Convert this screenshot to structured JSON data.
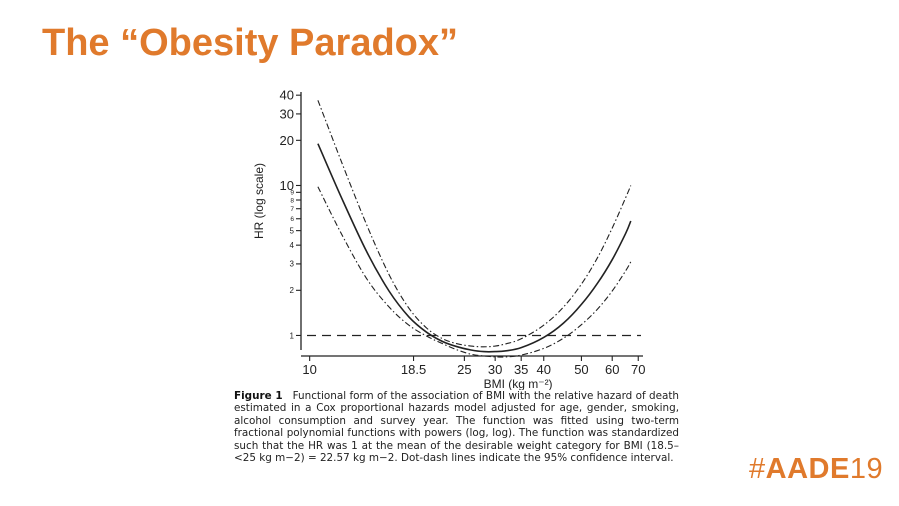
{
  "slide": {
    "title": "The “Obesity Paradox”",
    "hashtag_prefix": "#",
    "hashtag_bold": "AADE",
    "hashtag_light": "19",
    "accent_color": "#e07a2c"
  },
  "figure": {
    "caption_label": "Figure 1",
    "caption_text": "Functional form of the association of BMI with the relative hazard of death estimated in a Cox proportional hazards model adjusted for age, gender, smoking, alcohol consumption and survey year. The function was fitted using two-term fractional polynomial functions with powers (log, log). The function was standardized such that the HR was 1 at the mean of the desirable weight category for BMI (18.5–<25 kg m−2) = 22.57 kg m−2. Dot-dash lines indicate the 95% confidence interval."
  },
  "chart_data": {
    "type": "line",
    "xlabel": "BMI (kg m⁻²)",
    "ylabel": "HR (log scale)",
    "x_scale": "log",
    "y_scale": "log",
    "xlim": [
      9.5,
      72
    ],
    "ylim": [
      0.8,
      42
    ],
    "x_ticks": [
      10,
      18.5,
      25,
      30,
      35,
      40,
      50,
      60,
      70
    ],
    "x_tick_labels": [
      "10",
      "18.5",
      "25",
      "30",
      "35",
      "40",
      "50",
      "60",
      "70"
    ],
    "y_ticks": [
      1,
      2,
      3,
      4,
      5,
      6,
      7,
      8,
      9,
      10,
      20,
      30,
      40
    ],
    "y_tick_labels": [
      "1",
      "2",
      "3",
      "4",
      "5",
      "6",
      "7",
      "8",
      "9",
      "10",
      "20",
      "30",
      "40"
    ],
    "reference_line": {
      "y": 1,
      "style": "dashed"
    },
    "grid": false,
    "series": [
      {
        "role": "estimate",
        "style": "solid",
        "x": [
          10.5,
          12,
          14,
          16,
          18,
          20,
          22,
          24,
          26,
          28,
          30,
          32,
          35,
          40,
          45,
          50,
          55,
          60,
          65,
          67
        ],
        "y": [
          19.0,
          8.6,
          3.64,
          1.98,
          1.33,
          1.05,
          0.91,
          0.84,
          0.8,
          0.78,
          0.78,
          0.79,
          0.83,
          0.97,
          1.21,
          1.61,
          2.23,
          3.2,
          4.8,
          5.8
        ]
      },
      {
        "role": "upper_95_ci",
        "style": "dashdot",
        "x": [
          10.5,
          12,
          14,
          16,
          18,
          20,
          22,
          24,
          26,
          28,
          30,
          32,
          35,
          40,
          45,
          50,
          55,
          60,
          65,
          67
        ],
        "y": [
          37.0,
          15.0,
          5.5,
          2.55,
          1.52,
          1.12,
          0.95,
          0.88,
          0.85,
          0.84,
          0.85,
          0.88,
          0.95,
          1.17,
          1.55,
          2.2,
          3.3,
          5.2,
          8.3,
          10.0
        ]
      },
      {
        "role": "lower_95_ci",
        "style": "dashdot",
        "x": [
          10.5,
          12,
          14,
          16,
          18,
          20,
          22,
          24,
          26,
          28,
          30,
          32,
          35,
          40,
          45,
          50,
          55,
          60,
          65,
          67
        ],
        "y": [
          9.8,
          4.9,
          2.4,
          1.55,
          1.17,
          0.99,
          0.88,
          0.8,
          0.75,
          0.73,
          0.72,
          0.72,
          0.74,
          0.82,
          0.96,
          1.18,
          1.5,
          1.98,
          2.7,
          3.1
        ]
      }
    ]
  }
}
